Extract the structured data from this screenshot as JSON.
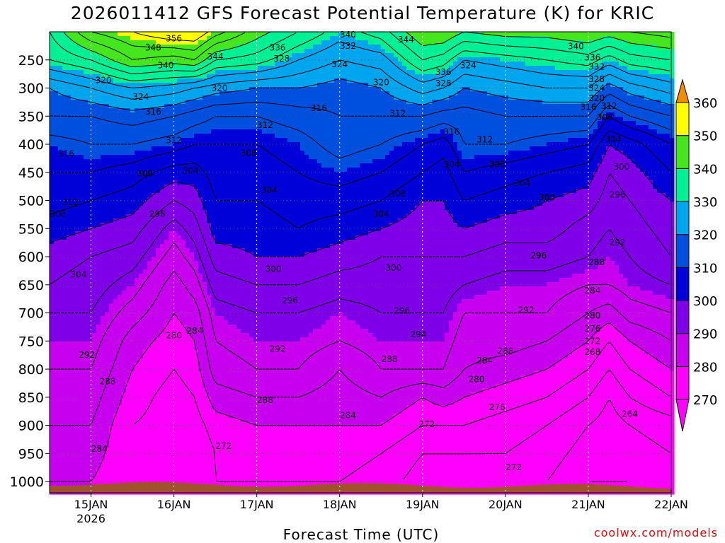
{
  "title": "2026011412 GFS Forecast Potential Temperature (K) for KRIC",
  "xaxis_title": "Forecast Time (UTC)",
  "credit": "coolwx.com/models",
  "chart_data": {
    "type": "heatmap",
    "title": "2026011412 GFS Forecast Potential Temperature (K) for KRIC",
    "xlabel": "Forecast Time (UTC)",
    "ylabel": "",
    "x_ticks": [
      {
        "label": "15JAN",
        "sub": "2026",
        "day": 15
      },
      {
        "label": "16JAN",
        "sub": "",
        "day": 16
      },
      {
        "label": "17JAN",
        "sub": "",
        "day": 17
      },
      {
        "label": "18JAN",
        "sub": "",
        "day": 18
      },
      {
        "label": "19JAN",
        "sub": "",
        "day": 19
      },
      {
        "label": "20JAN",
        "sub": "",
        "day": 20
      },
      {
        "label": "21JAN",
        "sub": "",
        "day": 21
      },
      {
        "label": "22JAN",
        "sub": "",
        "day": 22
      }
    ],
    "xlim_days": [
      14.5,
      22
    ],
    "y_ticks": [
      250,
      300,
      350,
      400,
      450,
      500,
      550,
      600,
      650,
      700,
      750,
      800,
      850,
      900,
      950,
      1000
    ],
    "ylim_hpa": [
      200,
      1020
    ],
    "colorbar": {
      "levels": [
        270,
        280,
        290,
        300,
        310,
        320,
        330,
        340,
        350,
        360
      ],
      "colors": [
        "#ff00ff",
        "#c800f0",
        "#7f00e8",
        "#0000d8",
        "#0050e0",
        "#00a5f0",
        "#00f096",
        "#46e61e",
        "#ffff00",
        "#ffb400"
      ],
      "below_color": "#ff00ff",
      "above_color": "#f08c00"
    },
    "contour_interval": 4,
    "terrain_color": "#a0522d",
    "theta_profiles": {
      "pressure_levels": [
        200,
        250,
        300,
        350,
        400,
        450,
        500,
        550,
        600,
        650,
        700,
        750,
        800,
        850,
        900,
        950,
        1000
      ],
      "times_days": [
        14.5,
        15.0,
        15.5,
        16.0,
        16.25,
        16.5,
        17.0,
        17.5,
        18.0,
        18.5,
        19.0,
        19.25,
        19.5,
        20.0,
        20.5,
        21.0,
        21.25,
        21.5,
        22.0
      ],
      "values": [
        [
          336,
          332,
          320,
          316,
          310,
          308,
          306,
          302,
          298,
          296,
          292,
          290,
          288,
          286,
          284,
          282,
          280
        ],
        [
          348,
          336,
          324,
          316,
          312,
          308,
          304,
          300,
          296,
          294,
          292,
          290,
          288,
          286,
          284,
          282,
          280
        ],
        [
          352,
          344,
          328,
          318,
          312,
          306,
          302,
          298,
          294,
          290,
          286,
          282,
          280,
          278,
          276,
          276,
          276
        ],
        [
          356,
          342,
          326,
          316,
          310,
          302,
          296,
          290,
          286,
          282,
          280,
          278,
          276,
          274,
          274,
          274,
          274
        ],
        [
          356,
          344,
          324,
          314,
          308,
          302,
          298,
          294,
          290,
          286,
          282,
          280,
          278,
          276,
          274,
          272,
          272
        ],
        [
          350,
          336,
          322,
          312,
          308,
          306,
          304,
          302,
          298,
          294,
          290,
          288,
          286,
          282,
          278,
          276,
          276
        ],
        [
          342,
          334,
          320,
          312,
          308,
          306,
          304,
          302,
          300,
          296,
          292,
          290,
          288,
          284,
          280,
          278,
          276
        ],
        [
          336,
          328,
          320,
          314,
          310,
          308,
          306,
          304,
          300,
          296,
          292,
          290,
          288,
          284,
          280,
          278,
          276
        ],
        [
          330,
          324,
          318,
          316,
          314,
          310,
          306,
          302,
          298,
          294,
          290,
          288,
          284,
          282,
          280,
          278,
          276
        ],
        [
          334,
          326,
          320,
          316,
          312,
          308,
          304,
          300,
          296,
          294,
          292,
          290,
          288,
          284,
          280,
          276,
          274
        ],
        [
          344,
          336,
          326,
          316,
          308,
          304,
          300,
          298,
          296,
          294,
          292,
          290,
          288,
          280,
          276,
          272,
          270
        ],
        [
          344,
          334,
          324,
          314,
          306,
          302,
          300,
          298,
          296,
          294,
          292,
          290,
          288,
          282,
          276,
          272,
          270
        ],
        [
          340,
          328,
          320,
          314,
          312,
          308,
          304,
          300,
          296,
          292,
          288,
          286,
          284,
          280,
          276,
          272,
          270
        ],
        [
          342,
          330,
          322,
          316,
          312,
          306,
          302,
          298,
          294,
          290,
          288,
          286,
          282,
          278,
          274,
          272,
          270
        ],
        [
          342,
          332,
          324,
          316,
          310,
          304,
          300,
          298,
          294,
          290,
          288,
          284,
          280,
          276,
          272,
          270,
          268
        ],
        [
          344,
          334,
          324,
          316,
          308,
          302,
          298,
          294,
          292,
          288,
          284,
          280,
          276,
          272,
          268,
          266,
          264
        ],
        [
          342,
          330,
          318,
          308,
          300,
          296,
          294,
          292,
          290,
          288,
          282,
          276,
          272,
          268,
          266,
          264,
          264
        ],
        [
          344,
          334,
          322,
          312,
          302,
          298,
          296,
          294,
          292,
          290,
          286,
          280,
          276,
          272,
          268,
          266,
          264
        ],
        [
          346,
          336,
          326,
          316,
          308,
          304,
          300,
          298,
          296,
          292,
          288,
          284,
          280,
          276,
          270,
          268,
          266
        ]
      ]
    },
    "contour_labels": [
      {
        "text": "356",
        "day": 16.0,
        "p": 212
      },
      {
        "text": "348",
        "day": 15.75,
        "p": 228
      },
      {
        "text": "340",
        "day": 15.9,
        "p": 260
      },
      {
        "text": "344",
        "day": 16.5,
        "p": 244
      },
      {
        "text": "336",
        "day": 17.25,
        "p": 228
      },
      {
        "text": "328",
        "day": 17.3,
        "p": 248
      },
      {
        "text": "332",
        "day": 18.1,
        "p": 225
      },
      {
        "text": "340",
        "day": 18.1,
        "p": 205
      },
      {
        "text": "344",
        "day": 18.8,
        "p": 214
      },
      {
        "text": "324",
        "day": 18.0,
        "p": 258
      },
      {
        "text": "320",
        "day": 18.5,
        "p": 290
      },
      {
        "text": "336",
        "day": 19.25,
        "p": 272
      },
      {
        "text": "324",
        "day": 19.55,
        "p": 260
      },
      {
        "text": "328",
        "day": 19.25,
        "p": 292
      },
      {
        "text": "340",
        "day": 20.85,
        "p": 226
      },
      {
        "text": "336",
        "day": 21.05,
        "p": 246
      },
      {
        "text": "332",
        "day": 21.1,
        "p": 262
      },
      {
        "text": "328",
        "day": 21.1,
        "p": 284
      },
      {
        "text": "324",
        "day": 21.1,
        "p": 300
      },
      {
        "text": "320",
        "day": 21.1,
        "p": 318
      },
      {
        "text": "320",
        "day": 15.15,
        "p": 286
      },
      {
        "text": "324",
        "day": 15.6,
        "p": 316
      },
      {
        "text": "320",
        "day": 16.55,
        "p": 300
      },
      {
        "text": "316",
        "day": 15.75,
        "p": 342
      },
      {
        "text": "316",
        "day": 17.75,
        "p": 336
      },
      {
        "text": "312",
        "day": 17.1,
        "p": 366
      },
      {
        "text": "312",
        "day": 18.7,
        "p": 345
      },
      {
        "text": "316",
        "day": 19.35,
        "p": 378
      },
      {
        "text": "312",
        "day": 19.75,
        "p": 392
      },
      {
        "text": "316",
        "day": 21.0,
        "p": 334
      },
      {
        "text": "312",
        "day": 21.25,
        "p": 332
      },
      {
        "text": "308",
        "day": 21.2,
        "p": 352
      },
      {
        "text": "304",
        "day": 21.3,
        "p": 391
      },
      {
        "text": "312",
        "day": 16.0,
        "p": 393
      },
      {
        "text": "308",
        "day": 16.9,
        "p": 416
      },
      {
        "text": "316",
        "day": 14.7,
        "p": 417
      },
      {
        "text": "300",
        "day": 15.65,
        "p": 452
      },
      {
        "text": "304",
        "day": 16.2,
        "p": 447
      },
      {
        "text": "304",
        "day": 19.35,
        "p": 436
      },
      {
        "text": "308",
        "day": 19.9,
        "p": 436
      },
      {
        "text": "304",
        "day": 20.2,
        "p": 469
      },
      {
        "text": "300",
        "day": 20.5,
        "p": 495
      },
      {
        "text": "304",
        "day": 17.15,
        "p": 482
      },
      {
        "text": "308",
        "day": 18.7,
        "p": 488
      },
      {
        "text": "304",
        "day": 18.5,
        "p": 524
      },
      {
        "text": "312",
        "day": 14.75,
        "p": 503
      },
      {
        "text": "308",
        "day": 14.6,
        "p": 524
      },
      {
        "text": "296",
        "day": 15.8,
        "p": 524
      },
      {
        "text": "296",
        "day": 21.35,
        "p": 490
      },
      {
        "text": "300",
        "day": 21.4,
        "p": 440
      },
      {
        "text": "300",
        "day": 17.2,
        "p": 622
      },
      {
        "text": "300",
        "day": 18.65,
        "p": 620
      },
      {
        "text": "304",
        "day": 14.85,
        "p": 632
      },
      {
        "text": "296",
        "day": 17.4,
        "p": 678
      },
      {
        "text": "296",
        "day": 18.75,
        "p": 696
      },
      {
        "text": "296",
        "day": 20.4,
        "p": 598
      },
      {
        "text": "292",
        "day": 21.35,
        "p": 575
      },
      {
        "text": "288",
        "day": 21.1,
        "p": 610
      },
      {
        "text": "284",
        "day": 21.05,
        "p": 660
      },
      {
        "text": "280",
        "day": 21.05,
        "p": 705
      },
      {
        "text": "276",
        "day": 21.05,
        "p": 728
      },
      {
        "text": "272",
        "day": 21.05,
        "p": 750
      },
      {
        "text": "268",
        "day": 21.05,
        "p": 770
      },
      {
        "text": "292",
        "day": 20.25,
        "p": 695
      },
      {
        "text": "280",
        "day": 16.0,
        "p": 740
      },
      {
        "text": "284",
        "day": 16.25,
        "p": 732
      },
      {
        "text": "292",
        "day": 14.95,
        "p": 775
      },
      {
        "text": "288",
        "day": 15.2,
        "p": 822
      },
      {
        "text": "292",
        "day": 17.25,
        "p": 764
      },
      {
        "text": "294",
        "day": 18.95,
        "p": 738
      },
      {
        "text": "288",
        "day": 18.6,
        "p": 782
      },
      {
        "text": "284",
        "day": 19.75,
        "p": 785
      },
      {
        "text": "288",
        "day": 20.0,
        "p": 768
      },
      {
        "text": "280",
        "day": 19.65,
        "p": 818
      },
      {
        "text": "276",
        "day": 19.9,
        "p": 868
      },
      {
        "text": "288",
        "day": 17.1,
        "p": 855
      },
      {
        "text": "284",
        "day": 18.1,
        "p": 882
      },
      {
        "text": "272",
        "day": 19.05,
        "p": 898
      },
      {
        "text": "272",
        "day": 16.6,
        "p": 937
      },
      {
        "text": "284",
        "day": 15.1,
        "p": 942
      },
      {
        "text": "272",
        "day": 20.1,
        "p": 975
      },
      {
        "text": "264",
        "day": 21.5,
        "p": 880
      }
    ]
  }
}
